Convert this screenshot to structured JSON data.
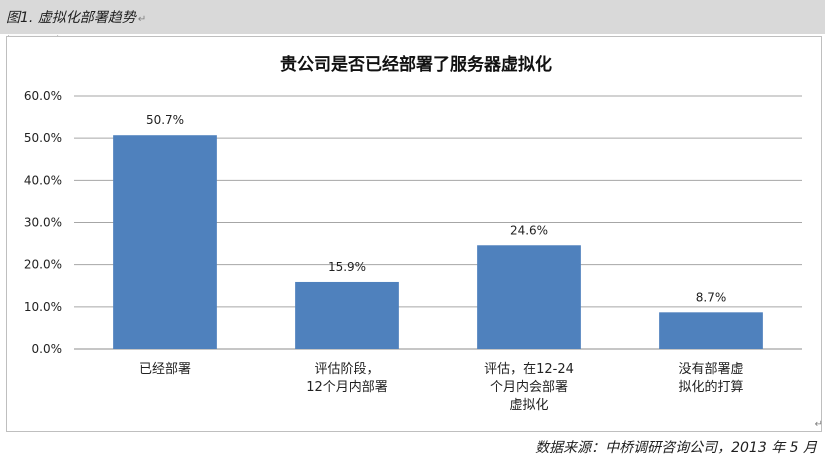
{
  "figure": {
    "caption": "图1. 虚拟化部署趋势",
    "source": "数据来源：中桥调研咨询公司，2013 年 5 月"
  },
  "chart_data": {
    "type": "bar",
    "title": "贵公司是否已经部署了服务器虚拟化",
    "categories": [
      [
        "已经部署"
      ],
      [
        "评估阶段，",
        "12个月内部署"
      ],
      [
        "评估，在12-24",
        "个月内会部署",
        "虚拟化"
      ],
      [
        "没有部署虚",
        "拟化的打算"
      ]
    ],
    "values": [
      50.7,
      15.9,
      24.6,
      8.7
    ],
    "value_labels": [
      "50.7%",
      "15.9%",
      "24.6%",
      "8.7%"
    ],
    "y_ticks": [
      "0.0%",
      "10.0%",
      "20.0%",
      "30.0%",
      "40.0%",
      "50.0%",
      "60.0%"
    ],
    "ylim": [
      0,
      60
    ],
    "grid": true,
    "bar_color": "#4f81bd"
  }
}
